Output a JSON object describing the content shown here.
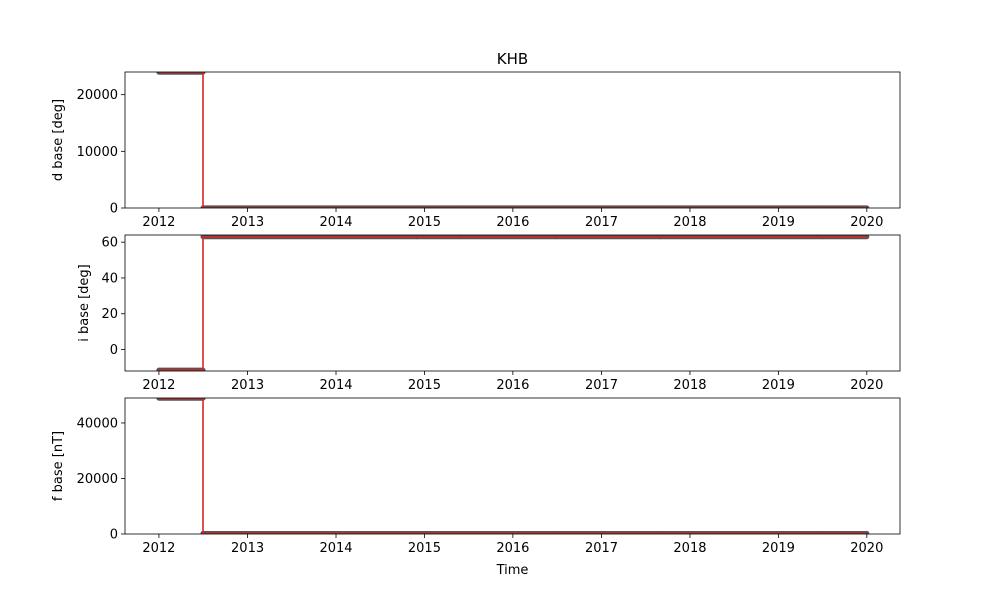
{
  "chart_data": [
    {
      "type": "line",
      "title": "KHB",
      "xlabel": "",
      "ylabel": "d base [deg]",
      "xlim": [
        "2011-08-14",
        "2020-05-17"
      ],
      "ylim": [
        0,
        24000
      ],
      "xticks": [
        "2012",
        "2013",
        "2014",
        "2015",
        "2016",
        "2017",
        "2018",
        "2019",
        "2020"
      ],
      "yticks": [
        "0",
        "10000",
        "20000"
      ],
      "series": [
        {
          "color": "#555555",
          "style": "segments",
          "segments": [
            {
              "x": [
                "2012-01-01",
                "2012-07-01"
              ],
              "y": [
                23950,
                23950
              ]
            },
            {
              "x": [
                "2012-07-01",
                "2014-12-01"
              ],
              "y": [
                20,
                20
              ]
            },
            {
              "x": [
                "2014-12-01",
                "2015-06-01"
              ],
              "y": [
                20,
                20
              ]
            },
            {
              "x": [
                "2015-06-01",
                "2016-07-01"
              ],
              "y": [
                20,
                20
              ]
            },
            {
              "x": [
                "2016-07-01",
                "2017-09-01"
              ],
              "y": [
                20,
                20
              ]
            },
            {
              "x": [
                "2017-09-01",
                "2019-07-01"
              ],
              "y": [
                20,
                20
              ]
            },
            {
              "x": [
                "2019-07-01",
                "2020-01-01"
              ],
              "y": [
                20,
                20
              ]
            }
          ]
        },
        {
          "color": "#d62728",
          "style": "step",
          "x": [
            "2012-01-01",
            "2012-07-01",
            "2012-07-01",
            "2020-01-01"
          ],
          "y": [
            23950,
            23950,
            20,
            20
          ]
        }
      ]
    },
    {
      "type": "line",
      "title": "",
      "xlabel": "",
      "ylabel": "i base [deg]",
      "xlim": [
        "2011-08-14",
        "2020-05-17"
      ],
      "ylim": [
        -12,
        64
      ],
      "xticks": [
        "2012",
        "2013",
        "2014",
        "2015",
        "2016",
        "2017",
        "2018",
        "2019",
        "2020"
      ],
      "yticks": [
        "0",
        "20",
        "40",
        "60"
      ],
      "series": [
        {
          "color": "#555555",
          "style": "segments",
          "segments": [
            {
              "x": [
                "2012-01-01",
                "2012-07-01"
              ],
              "y": [
                -11.5,
                -11.5
              ]
            },
            {
              "x": [
                "2012-07-01",
                "2014-12-01"
              ],
              "y": [
                63,
                63
              ]
            },
            {
              "x": [
                "2014-12-01",
                "2015-06-01"
              ],
              "y": [
                63,
                63
              ]
            },
            {
              "x": [
                "2015-06-01",
                "2016-07-01"
              ],
              "y": [
                63,
                63
              ]
            },
            {
              "x": [
                "2016-07-01",
                "2017-09-01"
              ],
              "y": [
                63,
                63
              ]
            },
            {
              "x": [
                "2017-09-01",
                "2019-07-01"
              ],
              "y": [
                63,
                63
              ]
            },
            {
              "x": [
                "2019-07-01",
                "2020-01-01"
              ],
              "y": [
                63,
                63
              ]
            }
          ]
        },
        {
          "color": "#d62728",
          "style": "step",
          "x": [
            "2012-01-01",
            "2012-07-01",
            "2012-07-01",
            "2020-01-01"
          ],
          "y": [
            -11.5,
            -11.5,
            63,
            63
          ]
        }
      ]
    },
    {
      "type": "line",
      "title": "",
      "xlabel": "Time",
      "ylabel": "f base [nT]",
      "xlim": [
        "2011-08-14",
        "2020-05-17"
      ],
      "ylim": [
        0,
        49000
      ],
      "xticks": [
        "2012",
        "2013",
        "2014",
        "2015",
        "2016",
        "2017",
        "2018",
        "2019",
        "2020"
      ],
      "yticks": [
        "0",
        "20000",
        "40000"
      ],
      "series": [
        {
          "color": "#555555",
          "style": "segments",
          "segments": [
            {
              "x": [
                "2012-01-01",
                "2012-07-01"
              ],
              "y": [
                48900,
                48900
              ]
            },
            {
              "x": [
                "2012-07-01",
                "2014-12-01"
              ],
              "y": [
                200,
                200
              ]
            },
            {
              "x": [
                "2014-12-01",
                "2015-06-01"
              ],
              "y": [
                200,
                200
              ]
            },
            {
              "x": [
                "2015-06-01",
                "2016-07-01"
              ],
              "y": [
                200,
                200
              ]
            },
            {
              "x": [
                "2016-07-01",
                "2017-09-01"
              ],
              "y": [
                200,
                200
              ]
            },
            {
              "x": [
                "2017-09-01",
                "2019-07-01"
              ],
              "y": [
                200,
                200
              ]
            },
            {
              "x": [
                "2019-07-01",
                "2020-01-01"
              ],
              "y": [
                200,
                200
              ]
            }
          ]
        },
        {
          "color": "#d62728",
          "style": "step",
          "x": [
            "2012-01-01",
            "2012-07-01",
            "2012-07-01",
            "2020-01-01"
          ],
          "y": [
            48900,
            48900,
            200,
            200
          ]
        }
      ]
    }
  ]
}
